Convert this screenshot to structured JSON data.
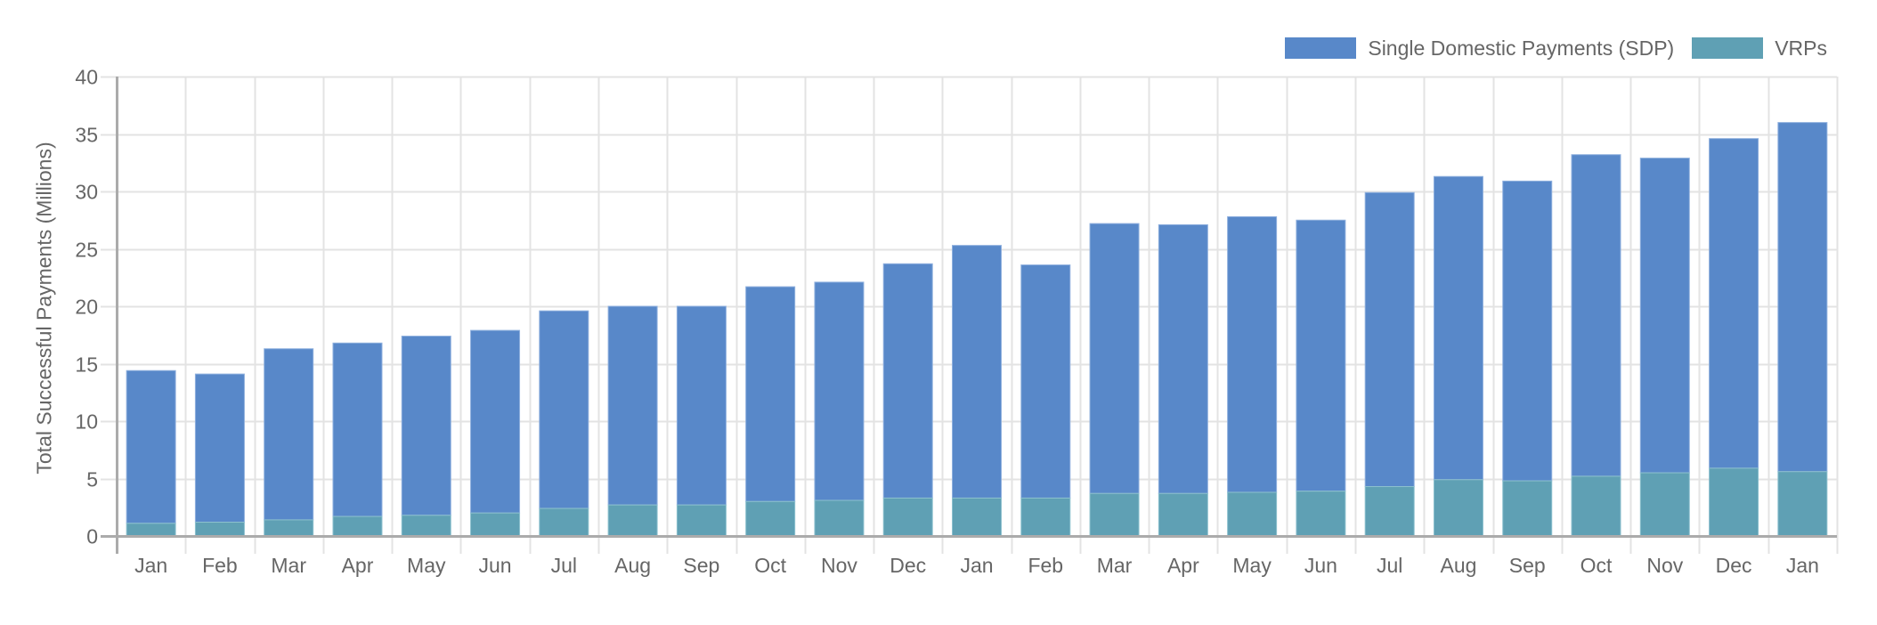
{
  "colors": {
    "sdp": "#5888C9",
    "vrp": "#5FA0B4",
    "grid": "#E3E3E3",
    "axis": "#ABABAB",
    "text": "#666666"
  },
  "legend": {
    "items": [
      {
        "label": "Single Domestic Payments (SDP)",
        "color": "#5888C9"
      },
      {
        "label": "VRPs",
        "color": "#5FA0B4"
      }
    ]
  },
  "axes": {
    "y_title": "Total Successful Payments (Millions)",
    "y_ticks": [
      "0",
      "5",
      "10",
      "15",
      "20",
      "25",
      "30",
      "35",
      "40"
    ]
  },
  "chart_data": {
    "type": "bar",
    "stacked": true,
    "title": "",
    "xlabel": "",
    "ylabel": "Total Successful Payments (Millions)",
    "ylim": [
      0,
      40
    ],
    "y_ticks": [
      0,
      5,
      10,
      15,
      20,
      25,
      30,
      35,
      40
    ],
    "grid": true,
    "legend_position": "top-right",
    "categories": [
      "Jan",
      "Feb",
      "Mar",
      "Apr",
      "May",
      "Jun",
      "Jul",
      "Aug",
      "Sep",
      "Oct",
      "Nov",
      "Dec",
      "Jan",
      "Feb",
      "Mar",
      "Apr",
      "May",
      "Jun",
      "Jul",
      "Aug",
      "Sep",
      "Oct",
      "Nov",
      "Dec",
      "Jan"
    ],
    "totals": [
      14.4,
      14.1,
      16.3,
      16.8,
      17.4,
      17.9,
      19.6,
      20.0,
      20.0,
      21.7,
      22.1,
      23.7,
      25.3,
      23.6,
      27.2,
      27.1,
      27.8,
      27.5,
      29.9,
      31.3,
      30.9,
      33.2,
      32.9,
      34.6,
      36.0
    ],
    "series": [
      {
        "name": "VRPs",
        "color": "#5FA0B4",
        "values": [
          1.1,
          1.2,
          1.4,
          1.7,
          1.8,
          2.0,
          2.4,
          2.7,
          2.7,
          3.0,
          3.1,
          3.3,
          3.3,
          3.3,
          3.7,
          3.7,
          3.8,
          3.9,
          4.3,
          4.9,
          4.8,
          5.2,
          5.5,
          5.9,
          5.6
        ]
      },
      {
        "name": "Single Domestic Payments (SDP)",
        "color": "#5888C9",
        "values": [
          13.3,
          12.9,
          14.9,
          15.1,
          15.6,
          15.9,
          17.2,
          17.3,
          17.3,
          18.7,
          19.0,
          20.4,
          22.0,
          20.3,
          23.5,
          23.4,
          24.0,
          23.6,
          25.6,
          26.4,
          26.1,
          28.0,
          27.4,
          28.7,
          30.4
        ]
      }
    ]
  }
}
